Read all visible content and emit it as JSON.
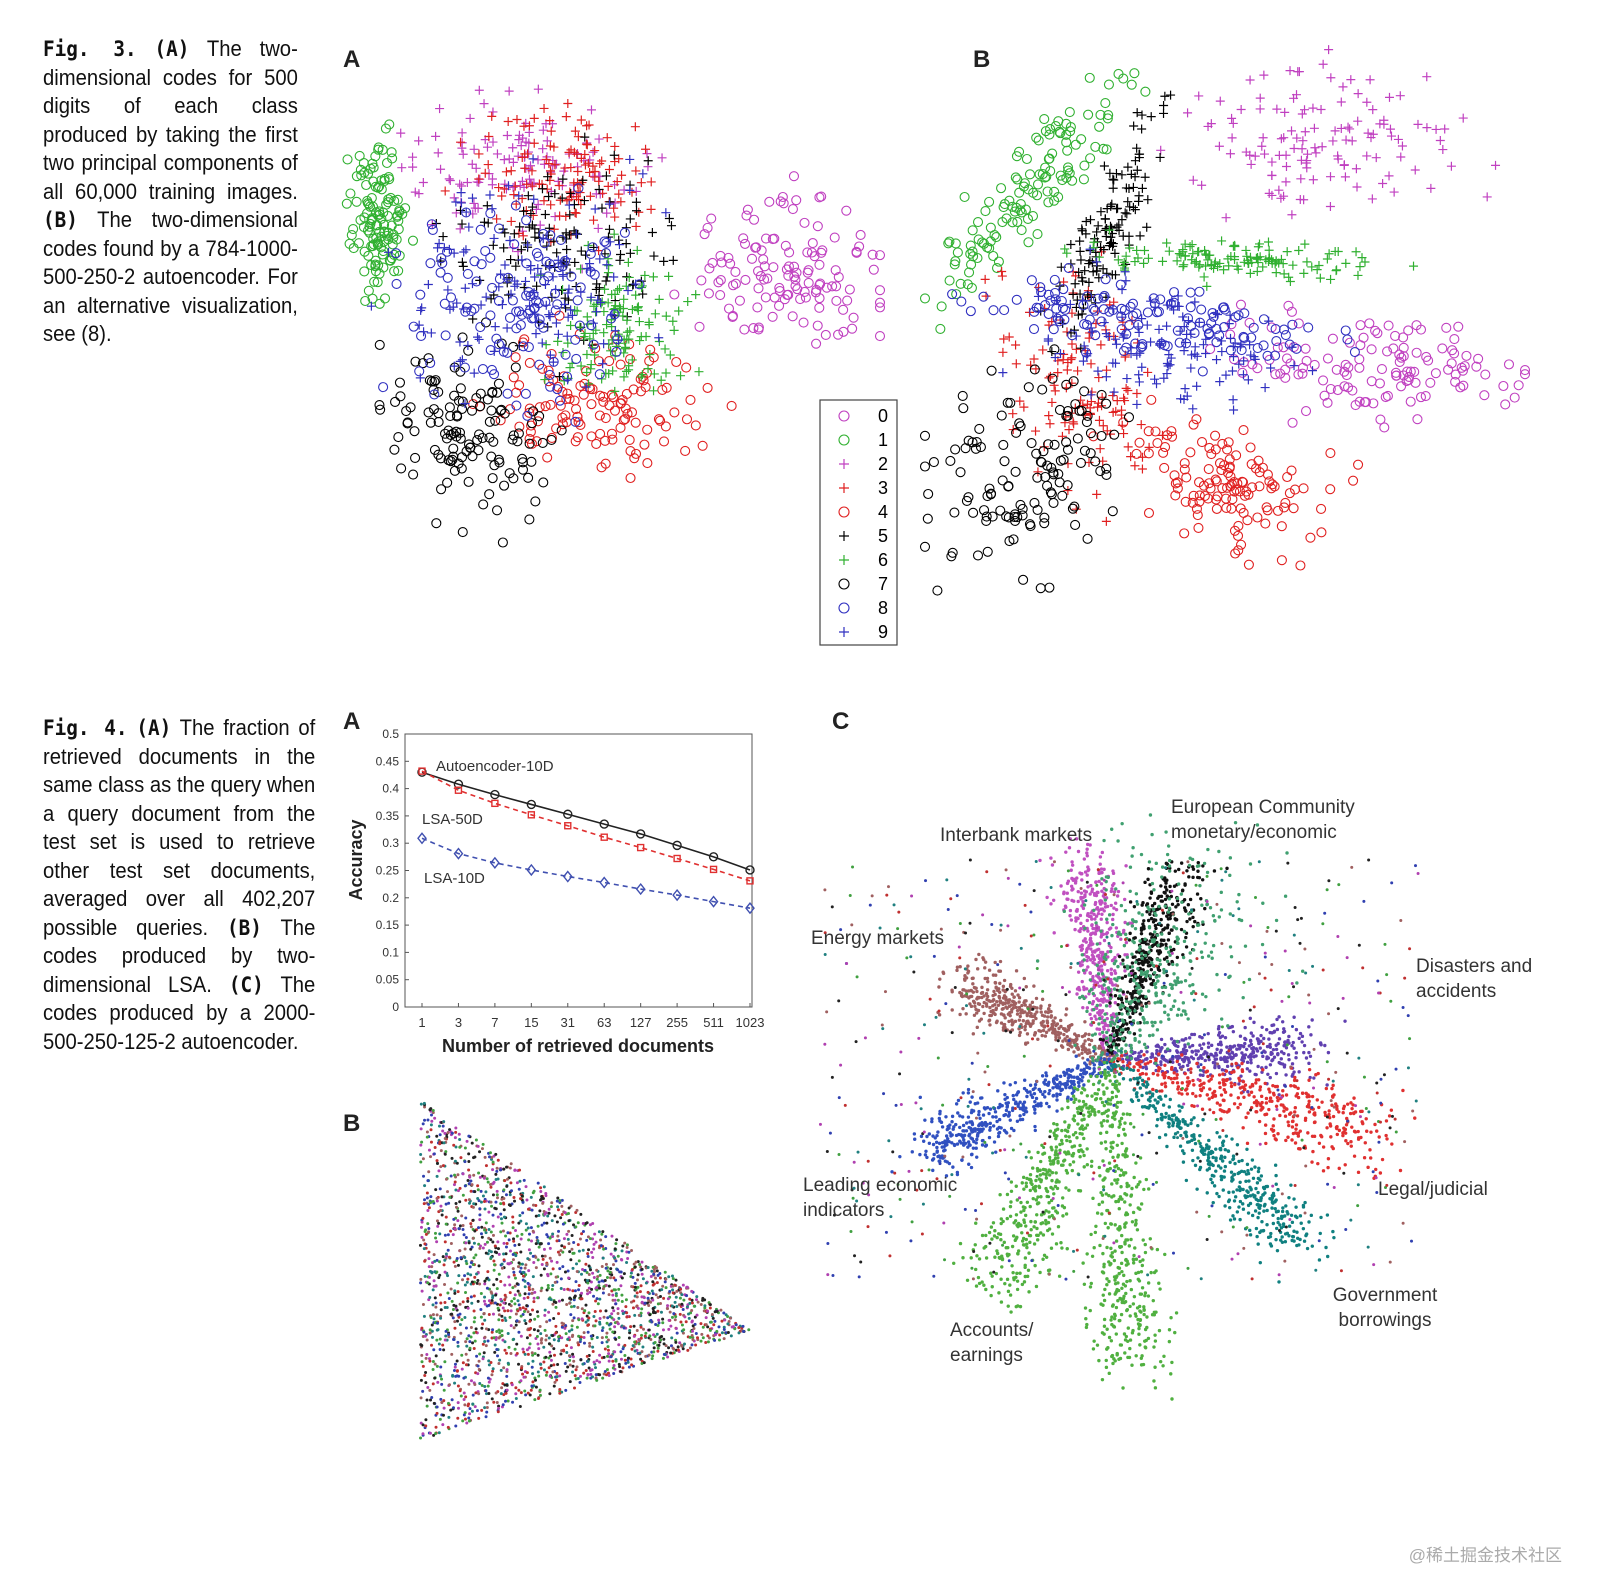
{
  "fig3": {
    "number": "Fig. 3.",
    "caption_a_tag": "(A)",
    "caption_a": " The two-dimensional codes for 500 digits of each class produced by taking the first two principal components of all 60,000 training images. ",
    "caption_b_tag": "(B)",
    "caption_b": " The two-dimensional codes found by a 784-1000-500-250-2 autoencoder. For an alternative visualization, see (8).",
    "panel_a": "A",
    "panel_b": "B",
    "legend": [
      {
        "label": "0",
        "marker": "circle",
        "color": "#c040c0"
      },
      {
        "label": "1",
        "marker": "circle",
        "color": "#30b030"
      },
      {
        "label": "2",
        "marker": "plus",
        "color": "#c040c0"
      },
      {
        "label": "3",
        "marker": "plus",
        "color": "#e02020"
      },
      {
        "label": "4",
        "marker": "circle",
        "color": "#e02020"
      },
      {
        "label": "5",
        "marker": "plus",
        "color": "#000000"
      },
      {
        "label": "6",
        "marker": "plus",
        "color": "#30b030"
      },
      {
        "label": "7",
        "marker": "circle",
        "color": "#000000"
      },
      {
        "label": "8",
        "marker": "circle",
        "color": "#3030c0"
      },
      {
        "label": "9",
        "marker": "plus",
        "color": "#3030c0"
      }
    ]
  },
  "fig4": {
    "number": "Fig. 4.",
    "caption_a_tag": "(A)",
    "caption_a": " The fraction of retrieved documents in the same class as the query when a query document from the test set is used to retrieve other test set documents, averaged over all 402,207 possible queries. ",
    "caption_b_tag": "(B)",
    "caption_b": " The codes produced by two-dimensional LSA. ",
    "caption_c_tag": "(C)",
    "caption_c": " The codes produced by a 2000-500-250-125-2 autoencoder.",
    "panel_a": "A",
    "panel_b": "B",
    "panel_c": "C",
    "c_labels": {
      "interbank": "Interbank markets",
      "european": "European Community monetary/economic",
      "energy": "Energy markets",
      "disasters": "Disasters and accidents",
      "leading": "Leading economic indicators",
      "legal": "Legal/judicial",
      "government": "Government borrowings",
      "accounts": "Accounts/ earnings"
    }
  },
  "chart_data": {
    "type": "line",
    "xlabel": "Number of retrieved documents",
    "ylabel": "Accuracy",
    "categories": [
      "1",
      "3",
      "7",
      "15",
      "31",
      "63",
      "127",
      "255",
      "511",
      "1023"
    ],
    "ylim": [
      0,
      0.5
    ],
    "yticks": [
      "0",
      "0.05",
      "0.1",
      "0.15",
      "0.2",
      "0.25",
      "0.3",
      "0.35",
      "0.4",
      "0.45",
      "0.5"
    ],
    "series": [
      {
        "name": "Autoencoder-10D",
        "color": "#222222",
        "marker": "circle",
        "style": "solid",
        "values": [
          0.43,
          0.408,
          0.389,
          0.371,
          0.353,
          0.335,
          0.317,
          0.296,
          0.275,
          0.251
        ]
      },
      {
        "name": "LSA-50D",
        "color": "#e03030",
        "marker": "square",
        "style": "dashed",
        "values": [
          0.432,
          0.397,
          0.373,
          0.352,
          0.332,
          0.311,
          0.292,
          0.272,
          0.252,
          0.231
        ]
      },
      {
        "name": "LSA-10D",
        "color": "#4050b0",
        "marker": "diamond",
        "style": "dashed",
        "values": [
          0.309,
          0.281,
          0.264,
          0.251,
          0.239,
          0.228,
          0.216,
          0.205,
          0.193,
          0.181
        ]
      }
    ]
  },
  "watermark": "@稀土掘金技术社区"
}
